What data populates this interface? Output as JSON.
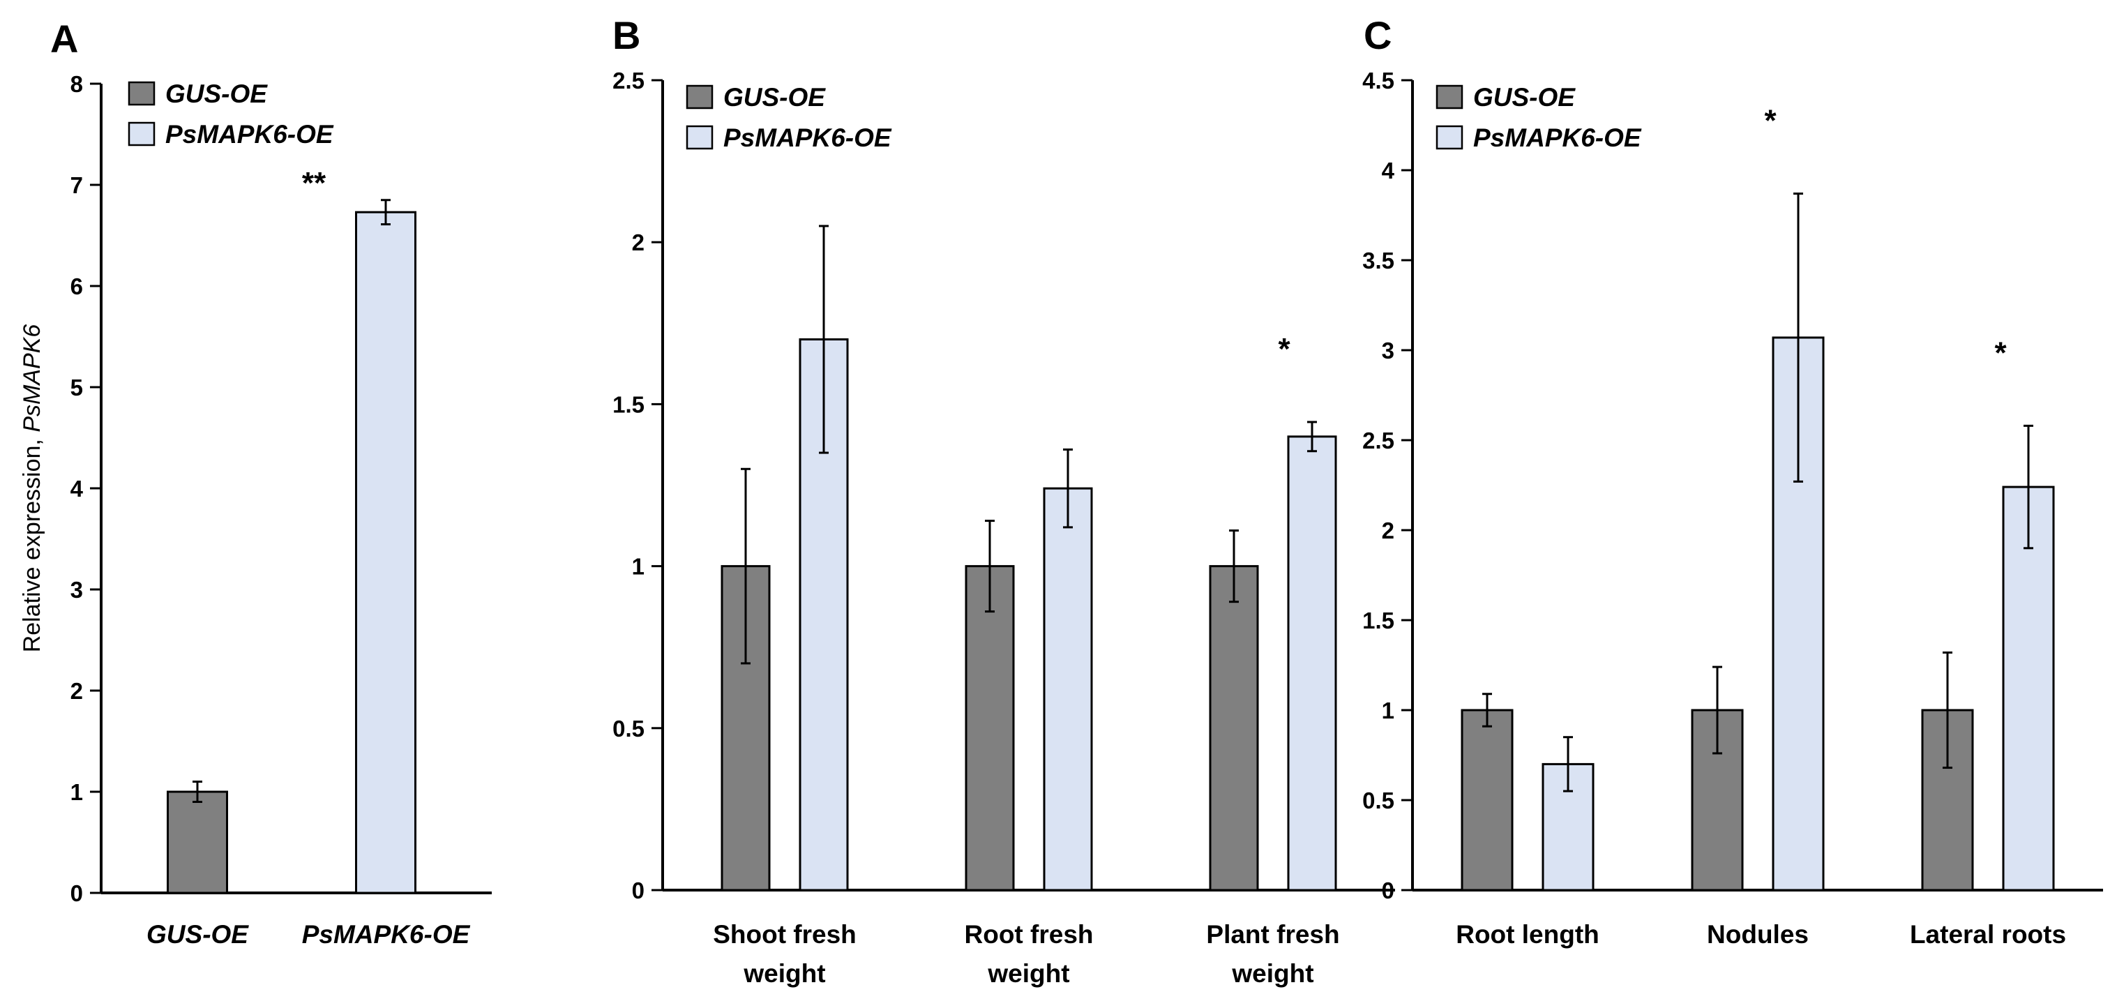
{
  "colors": {
    "gus": "#808080",
    "psmapk6": "#dae3f3",
    "axis": "#000000",
    "edge": "#000000"
  },
  "legend": {
    "gus": "GUS-OE",
    "psmapk6": "PsMAPK6-OE"
  },
  "chart_data": [
    {
      "panel": "A",
      "type": "bar",
      "ylabel_plain": "Relative expression, ",
      "ylabel_italic": "PsMAPK6",
      "ylim": [
        0,
        8
      ],
      "yticks": [
        "0",
        "1",
        "2",
        "3",
        "4",
        "5",
        "6",
        "7",
        "8"
      ],
      "categories": [
        "GUS-OE",
        "PsMAPK6-OE"
      ],
      "values": [
        1.0,
        6.73
      ],
      "errors": [
        0.1,
        0.12
      ],
      "significance": [
        "",
        "**"
      ]
    },
    {
      "panel": "B",
      "type": "bar",
      "ylim": [
        0,
        2.5
      ],
      "yticks": [
        "0",
        "0.5",
        "1",
        "1.5",
        "2",
        "2.5"
      ],
      "categories": [
        [
          "Shoot fresh",
          "weight"
        ],
        [
          "Root fresh",
          "weight"
        ],
        [
          "Plant fresh",
          "weight"
        ]
      ],
      "series": [
        {
          "name": "GUS-OE",
          "values": [
            1.0,
            1.0,
            1.0
          ],
          "errors": [
            0.3,
            0.14,
            0.11
          ]
        },
        {
          "name": "PsMAPK6-OE",
          "values": [
            1.7,
            1.24,
            1.4
          ],
          "errors": [
            0.35,
            0.12,
            0.045
          ]
        }
      ],
      "significance": [
        "",
        "",
        "*"
      ]
    },
    {
      "panel": "C",
      "type": "bar",
      "ylim": [
        0,
        4.5
      ],
      "yticks": [
        "0",
        "0.5",
        "1",
        "1.5",
        "2",
        "2.5",
        "3",
        "3.5",
        "4",
        "4.5"
      ],
      "categories": [
        [
          "Root length"
        ],
        [
          "Nodules"
        ],
        [
          "Lateral roots"
        ]
      ],
      "series": [
        {
          "name": "GUS-OE",
          "values": [
            1.0,
            1.0,
            1.0
          ],
          "errors": [
            0.09,
            0.24,
            0.32
          ]
        },
        {
          "name": "PsMAPK6-OE",
          "values": [
            0.7,
            3.07,
            2.24
          ],
          "errors": [
            0.15,
            0.8,
            0.34
          ]
        }
      ],
      "significance": [
        "",
        "*",
        "*"
      ]
    }
  ]
}
